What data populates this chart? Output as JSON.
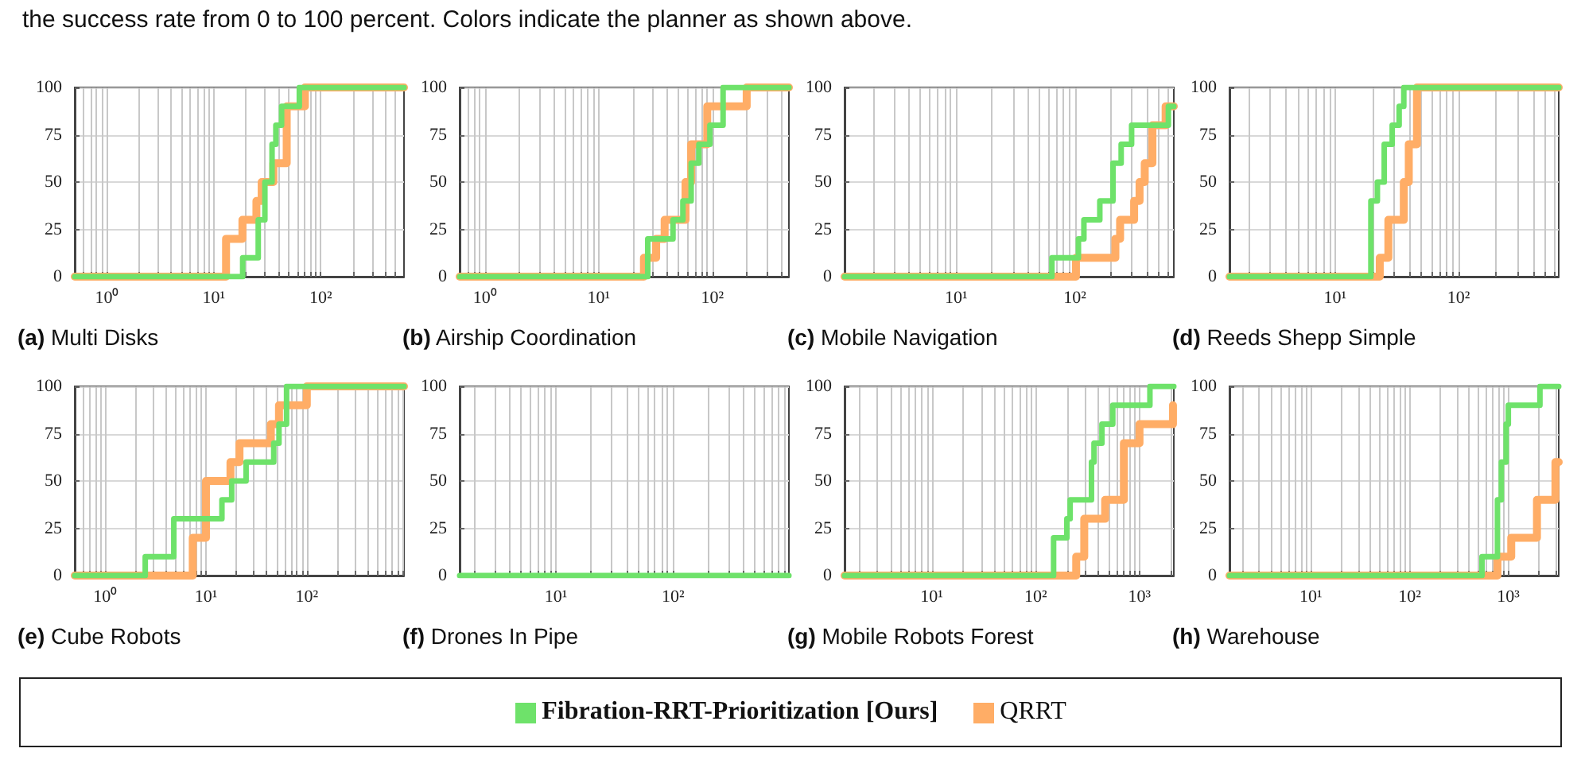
{
  "chart_data": [
    {
      "type": "step",
      "title": "(a) Multi Disks",
      "annotations": [
        "the success rate from 0 to 100 percent. Colors indicate the planner as shown above."
      ],
      "log": "x",
      "grid": true,
      "legend": "bottom",
      "xlim": [
        0.5,
        600
      ],
      "ylim": [
        0,
        100
      ],
      "yticks": [
        0,
        25,
        50,
        75,
        100
      ],
      "xticks": [
        {
          "value": 0.6,
          "label": null
        },
        {
          "value": 0.7,
          "label": null
        },
        {
          "value": 0.8,
          "label": null
        },
        {
          "value": 0.9,
          "label": null
        },
        {
          "value": 1,
          "label": "10⁰"
        },
        {
          "value": 2,
          "label": null
        },
        {
          "value": 3,
          "label": null
        },
        {
          "value": 4,
          "label": null
        },
        {
          "value": 5,
          "label": null
        },
        {
          "value": 6,
          "label": null
        },
        {
          "value": 7,
          "label": null
        },
        {
          "value": 8,
          "label": null
        },
        {
          "value": 9,
          "label": null
        },
        {
          "value": 10,
          "label": "10¹"
        },
        {
          "value": 20,
          "label": null
        },
        {
          "value": 30,
          "label": null
        },
        {
          "value": 40,
          "label": null
        },
        {
          "value": 50,
          "label": null
        },
        {
          "value": 60,
          "label": null
        },
        {
          "value": 70,
          "label": null
        },
        {
          "value": 80,
          "label": null
        },
        {
          "value": 90,
          "label": null
        },
        {
          "value": 100,
          "label": "10²"
        },
        {
          "value": 200,
          "label": null
        },
        {
          "value": 300,
          "label": null
        },
        {
          "value": 400,
          "label": null
        },
        {
          "value": 500,
          "label": null
        }
      ],
      "series": [
        {
          "name": "QRRT",
          "color": "#ffad66",
          "x": [
            0.5,
            13,
            18.5,
            25,
            28,
            36,
            48,
            71,
            600
          ],
          "values": [
            0,
            20,
            30,
            40,
            50,
            60,
            90,
            100,
            100
          ]
        },
        {
          "name": "Fibration-RRT-Prioritization [Ours]",
          "color": "#6ee26a",
          "x": [
            0.5,
            18.6,
            26,
            30,
            35,
            38,
            43,
            63,
            600
          ],
          "values": [
            0,
            10,
            30,
            50,
            70,
            80,
            90,
            100,
            100
          ]
        }
      ]
    },
    {
      "type": "step",
      "title": "(b) Airship Coordination",
      "log": "x",
      "grid": true,
      "legend": "bottom",
      "xlim": [
        0.6,
        470
      ],
      "ylim": [
        0,
        100
      ],
      "yticks": [
        0,
        25,
        50,
        75,
        100
      ],
      "xticks": [
        {
          "value": 0.7,
          "label": null
        },
        {
          "value": 0.8,
          "label": null
        },
        {
          "value": 0.9,
          "label": null
        },
        {
          "value": 1,
          "label": "10⁰"
        },
        {
          "value": 2,
          "label": null
        },
        {
          "value": 3,
          "label": null
        },
        {
          "value": 4,
          "label": null
        },
        {
          "value": 5,
          "label": null
        },
        {
          "value": 6,
          "label": null
        },
        {
          "value": 7,
          "label": null
        },
        {
          "value": 8,
          "label": null
        },
        {
          "value": 9,
          "label": null
        },
        {
          "value": 10,
          "label": "10¹"
        },
        {
          "value": 20,
          "label": null
        },
        {
          "value": 30,
          "label": null
        },
        {
          "value": 40,
          "label": null
        },
        {
          "value": 50,
          "label": null
        },
        {
          "value": 60,
          "label": null
        },
        {
          "value": 70,
          "label": null
        },
        {
          "value": 80,
          "label": null
        },
        {
          "value": 90,
          "label": null
        },
        {
          "value": 100,
          "label": "10²"
        },
        {
          "value": 200,
          "label": null
        },
        {
          "value": 300,
          "label": null
        },
        {
          "value": 400,
          "label": null
        }
      ],
      "series": [
        {
          "name": "QRRT",
          "color": "#ffad66",
          "x": [
            0.6,
            25,
            32,
            38,
            58,
            65,
            90,
            200,
            470
          ],
          "values": [
            0,
            10,
            20,
            30,
            50,
            70,
            90,
            100,
            100
          ]
        },
        {
          "name": "Fibration-RRT-Prioritization [Ours]",
          "color": "#6ee26a",
          "x": [
            0.6,
            27,
            45,
            55,
            65,
            76,
            95,
            124,
            470
          ],
          "values": [
            0,
            20,
            30,
            40,
            60,
            70,
            80,
            100,
            100
          ]
        }
      ]
    },
    {
      "type": "step",
      "title": "(c) Mobile Navigation",
      "log": "x",
      "grid": true,
      "legend": "bottom",
      "xlim": [
        1.15,
        680
      ],
      "ylim": [
        0,
        100
      ],
      "yticks": [
        0,
        25,
        50,
        75,
        100
      ],
      "xticks": [
        {
          "value": 2,
          "label": null
        },
        {
          "value": 3,
          "label": null
        },
        {
          "value": 4,
          "label": null
        },
        {
          "value": 5,
          "label": null
        },
        {
          "value": 6,
          "label": null
        },
        {
          "value": 7,
          "label": null
        },
        {
          "value": 8,
          "label": null
        },
        {
          "value": 9,
          "label": null
        },
        {
          "value": 10,
          "label": "10¹"
        },
        {
          "value": 20,
          "label": null
        },
        {
          "value": 30,
          "label": null
        },
        {
          "value": 40,
          "label": null
        },
        {
          "value": 50,
          "label": null
        },
        {
          "value": 60,
          "label": null
        },
        {
          "value": 70,
          "label": null
        },
        {
          "value": 80,
          "label": null
        },
        {
          "value": 90,
          "label": null
        },
        {
          "value": 100,
          "label": "10²"
        },
        {
          "value": 200,
          "label": null
        },
        {
          "value": 300,
          "label": null
        },
        {
          "value": 400,
          "label": null
        },
        {
          "value": 500,
          "label": null
        },
        {
          "value": 600,
          "label": null
        }
      ],
      "series": [
        {
          "name": "QRRT",
          "color": "#ffad66",
          "x": [
            1.15,
            102,
            219,
            240,
            315,
            350,
            387,
            449,
            580,
            680
          ],
          "values": [
            0,
            10,
            20,
            30,
            40,
            50,
            60,
            80,
            90,
            90
          ]
        },
        {
          "name": "Fibration-RRT-Prioritization [Ours]",
          "color": "#6ee26a",
          "x": [
            1.15,
            64,
            107,
            119,
            162,
            209,
            245,
            300,
            612,
            680
          ],
          "values": [
            0,
            10,
            20,
            30,
            40,
            60,
            70,
            80,
            90,
            90
          ]
        }
      ]
    },
    {
      "type": "step",
      "title": "(d) Reeds Shepp Simple",
      "log": "x",
      "grid": true,
      "legend": "bottom",
      "xlim": [
        1.4,
        645
      ],
      "ylim": [
        0,
        100
      ],
      "yticks": [
        0,
        25,
        50,
        75,
        100
      ],
      "xticks": [
        {
          "value": 2,
          "label": null
        },
        {
          "value": 3,
          "label": null
        },
        {
          "value": 4,
          "label": null
        },
        {
          "value": 5,
          "label": null
        },
        {
          "value": 6,
          "label": null
        },
        {
          "value": 7,
          "label": null
        },
        {
          "value": 8,
          "label": null
        },
        {
          "value": 9,
          "label": null
        },
        {
          "value": 10,
          "label": "10¹"
        },
        {
          "value": 20,
          "label": null
        },
        {
          "value": 30,
          "label": null
        },
        {
          "value": 40,
          "label": null
        },
        {
          "value": 50,
          "label": null
        },
        {
          "value": 60,
          "label": null
        },
        {
          "value": 70,
          "label": null
        },
        {
          "value": 80,
          "label": null
        },
        {
          "value": 90,
          "label": null
        },
        {
          "value": 100,
          "label": "10²"
        },
        {
          "value": 200,
          "label": null
        },
        {
          "value": 300,
          "label": null
        },
        {
          "value": 400,
          "label": null
        },
        {
          "value": 500,
          "label": null
        },
        {
          "value": 600,
          "label": null
        }
      ],
      "series": [
        {
          "name": "QRRT",
          "color": "#ffad66",
          "x": [
            1.4,
            23,
            27,
            36,
            39.5,
            46,
            645
          ],
          "values": [
            0,
            10,
            30,
            50,
            70,
            100,
            100
          ]
        },
        {
          "name": "Fibration-RRT-Prioritization [Ours]",
          "color": "#6ee26a",
          "x": [
            1.4,
            19.5,
            22,
            25,
            29,
            33,
            36,
            645
          ],
          "values": [
            0,
            40,
            50,
            70,
            80,
            90,
            100,
            100
          ]
        }
      ]
    },
    {
      "type": "step",
      "title": "(e) Cube Robots",
      "log": "x",
      "grid": true,
      "legend": "bottom",
      "xlim": [
        0.5,
        920
      ],
      "ylim": [
        0,
        100
      ],
      "yticks": [
        0,
        25,
        50,
        75,
        100
      ],
      "xticks": [
        {
          "value": 0.6,
          "label": null
        },
        {
          "value": 0.7,
          "label": null
        },
        {
          "value": 0.8,
          "label": null
        },
        {
          "value": 0.9,
          "label": null
        },
        {
          "value": 1,
          "label": "10⁰"
        },
        {
          "value": 2,
          "label": null
        },
        {
          "value": 3,
          "label": null
        },
        {
          "value": 4,
          "label": null
        },
        {
          "value": 5,
          "label": null
        },
        {
          "value": 6,
          "label": null
        },
        {
          "value": 7,
          "label": null
        },
        {
          "value": 8,
          "label": null
        },
        {
          "value": 9,
          "label": null
        },
        {
          "value": 10,
          "label": "10¹"
        },
        {
          "value": 20,
          "label": null
        },
        {
          "value": 30,
          "label": null
        },
        {
          "value": 40,
          "label": null
        },
        {
          "value": 50,
          "label": null
        },
        {
          "value": 60,
          "label": null
        },
        {
          "value": 70,
          "label": null
        },
        {
          "value": 80,
          "label": null
        },
        {
          "value": 90,
          "label": null
        },
        {
          "value": 100,
          "label": "10²"
        },
        {
          "value": 200,
          "label": null
        },
        {
          "value": 300,
          "label": null
        },
        {
          "value": 400,
          "label": null
        },
        {
          "value": 500,
          "label": null
        },
        {
          "value": 600,
          "label": null
        },
        {
          "value": 700,
          "label": null
        },
        {
          "value": 800,
          "label": null
        },
        {
          "value": 900,
          "label": null
        }
      ],
      "series": [
        {
          "name": "QRRT",
          "color": "#ffad66",
          "x": [
            0.5,
            7.4,
            10,
            17.5,
            21.5,
            44,
            53,
            100,
            920
          ],
          "values": [
            0,
            20,
            50,
            60,
            70,
            80,
            90,
            100,
            100
          ]
        },
        {
          "name": "Fibration-RRT-Prioritization [Ours]",
          "color": "#6ee26a",
          "x": [
            0.5,
            2.5,
            4.8,
            14.4,
            18,
            25,
            47,
            53,
            63,
            920
          ],
          "values": [
            0,
            10,
            30,
            40,
            50,
            60,
            70,
            80,
            100,
            100
          ]
        }
      ]
    },
    {
      "type": "step",
      "title": "(f) Drones In Pipe",
      "log": "x",
      "grid": true,
      "legend": "bottom",
      "xlim": [
        1.5,
        980
      ],
      "ylim": [
        0,
        100
      ],
      "yticks": [
        0,
        25,
        50,
        75,
        100
      ],
      "xticks": [
        {
          "value": 2,
          "label": null
        },
        {
          "value": 3,
          "label": null
        },
        {
          "value": 4,
          "label": null
        },
        {
          "value": 5,
          "label": null
        },
        {
          "value": 6,
          "label": null
        },
        {
          "value": 7,
          "label": null
        },
        {
          "value": 8,
          "label": null
        },
        {
          "value": 9,
          "label": null
        },
        {
          "value": 10,
          "label": "10¹"
        },
        {
          "value": 20,
          "label": null
        },
        {
          "value": 30,
          "label": null
        },
        {
          "value": 40,
          "label": null
        },
        {
          "value": 50,
          "label": null
        },
        {
          "value": 60,
          "label": null
        },
        {
          "value": 70,
          "label": null
        },
        {
          "value": 80,
          "label": null
        },
        {
          "value": 90,
          "label": null
        },
        {
          "value": 100,
          "label": "10²"
        },
        {
          "value": 200,
          "label": null
        },
        {
          "value": 300,
          "label": null
        },
        {
          "value": 400,
          "label": null
        },
        {
          "value": 500,
          "label": null
        },
        {
          "value": 600,
          "label": null
        },
        {
          "value": 700,
          "label": null
        },
        {
          "value": 800,
          "label": null
        },
        {
          "value": 900,
          "label": null
        }
      ],
      "series": [
        {
          "name": "Fibration-RRT-Prioritization [Ours]",
          "color": "#6ee26a",
          "x": [
            1.5,
            980
          ],
          "values": [
            0,
            0
          ]
        }
      ]
    },
    {
      "type": "step",
      "title": "(g) Mobile Robots Forest",
      "log": "x",
      "grid": true,
      "legend": "bottom",
      "xlim": [
        1.45,
        2140
      ],
      "ylim": [
        0,
        100
      ],
      "yticks": [
        0,
        25,
        50,
        75,
        100
      ],
      "xticks": [
        {
          "value": 2,
          "label": null
        },
        {
          "value": 3,
          "label": null
        },
        {
          "value": 4,
          "label": null
        },
        {
          "value": 5,
          "label": null
        },
        {
          "value": 6,
          "label": null
        },
        {
          "value": 7,
          "label": null
        },
        {
          "value": 8,
          "label": null
        },
        {
          "value": 9,
          "label": null
        },
        {
          "value": 10,
          "label": "10¹"
        },
        {
          "value": 20,
          "label": null
        },
        {
          "value": 30,
          "label": null
        },
        {
          "value": 40,
          "label": null
        },
        {
          "value": 50,
          "label": null
        },
        {
          "value": 60,
          "label": null
        },
        {
          "value": 70,
          "label": null
        },
        {
          "value": 80,
          "label": null
        },
        {
          "value": 90,
          "label": null
        },
        {
          "value": 100,
          "label": "10²"
        },
        {
          "value": 200,
          "label": null
        },
        {
          "value": 300,
          "label": null
        },
        {
          "value": 400,
          "label": null
        },
        {
          "value": 500,
          "label": null
        },
        {
          "value": 600,
          "label": null
        },
        {
          "value": 700,
          "label": null
        },
        {
          "value": 800,
          "label": null
        },
        {
          "value": 900,
          "label": null
        },
        {
          "value": 1000,
          "label": "10³"
        },
        {
          "value": 2000,
          "label": null
        }
      ],
      "series": [
        {
          "name": "QRRT",
          "color": "#ffad66",
          "x": [
            1.45,
            246,
            294,
            467,
            708,
            1000,
            2100,
            2140
          ],
          "values": [
            0,
            10,
            30,
            40,
            70,
            80,
            90,
            90
          ]
        },
        {
          "name": "Fibration-RRT-Prioritization [Ours]",
          "color": "#6ee26a",
          "x": [
            1.45,
            149,
            200,
            215,
            345,
            365,
            435,
            553,
            1260,
            2140
          ],
          "values": [
            0,
            20,
            30,
            40,
            60,
            70,
            80,
            90,
            100,
            100
          ]
        }
      ]
    },
    {
      "type": "step",
      "title": "(h) Warehouse",
      "log": "x",
      "grid": true,
      "legend": "bottom",
      "xlim": [
        1.5,
        3240
      ],
      "ylim": [
        0,
        100
      ],
      "yticks": [
        0,
        25,
        50,
        75,
        100
      ],
      "xticks": [
        {
          "value": 2,
          "label": null
        },
        {
          "value": 3,
          "label": null
        },
        {
          "value": 4,
          "label": null
        },
        {
          "value": 5,
          "label": null
        },
        {
          "value": 6,
          "label": null
        },
        {
          "value": 7,
          "label": null
        },
        {
          "value": 8,
          "label": null
        },
        {
          "value": 9,
          "label": null
        },
        {
          "value": 10,
          "label": "10¹"
        },
        {
          "value": 20,
          "label": null
        },
        {
          "value": 30,
          "label": null
        },
        {
          "value": 40,
          "label": null
        },
        {
          "value": 50,
          "label": null
        },
        {
          "value": 60,
          "label": null
        },
        {
          "value": 70,
          "label": null
        },
        {
          "value": 80,
          "label": null
        },
        {
          "value": 90,
          "label": null
        },
        {
          "value": 100,
          "label": "10²"
        },
        {
          "value": 200,
          "label": null
        },
        {
          "value": 300,
          "label": null
        },
        {
          "value": 400,
          "label": null
        },
        {
          "value": 500,
          "label": null
        },
        {
          "value": 600,
          "label": null
        },
        {
          "value": 700,
          "label": null
        },
        {
          "value": 800,
          "label": null
        },
        {
          "value": 900,
          "label": null
        },
        {
          "value": 1000,
          "label": "10³"
        },
        {
          "value": 2000,
          "label": null
        },
        {
          "value": 3000,
          "label": null
        }
      ],
      "series": [
        {
          "name": "QRRT",
          "color": "#ffad66",
          "x": [
            1.5,
            776,
            1070,
            1950,
            3000,
            3240
          ],
          "values": [
            0,
            10,
            20,
            40,
            60,
            60
          ]
        },
        {
          "name": "Fibration-RRT-Prioritization [Ours]",
          "color": "#6ee26a",
          "x": [
            1.5,
            541,
            776,
            850,
            950,
            1000,
            2090,
            3240
          ],
          "values": [
            0,
            10,
            40,
            60,
            80,
            90,
            100,
            100
          ]
        }
      ]
    }
  ]
}
